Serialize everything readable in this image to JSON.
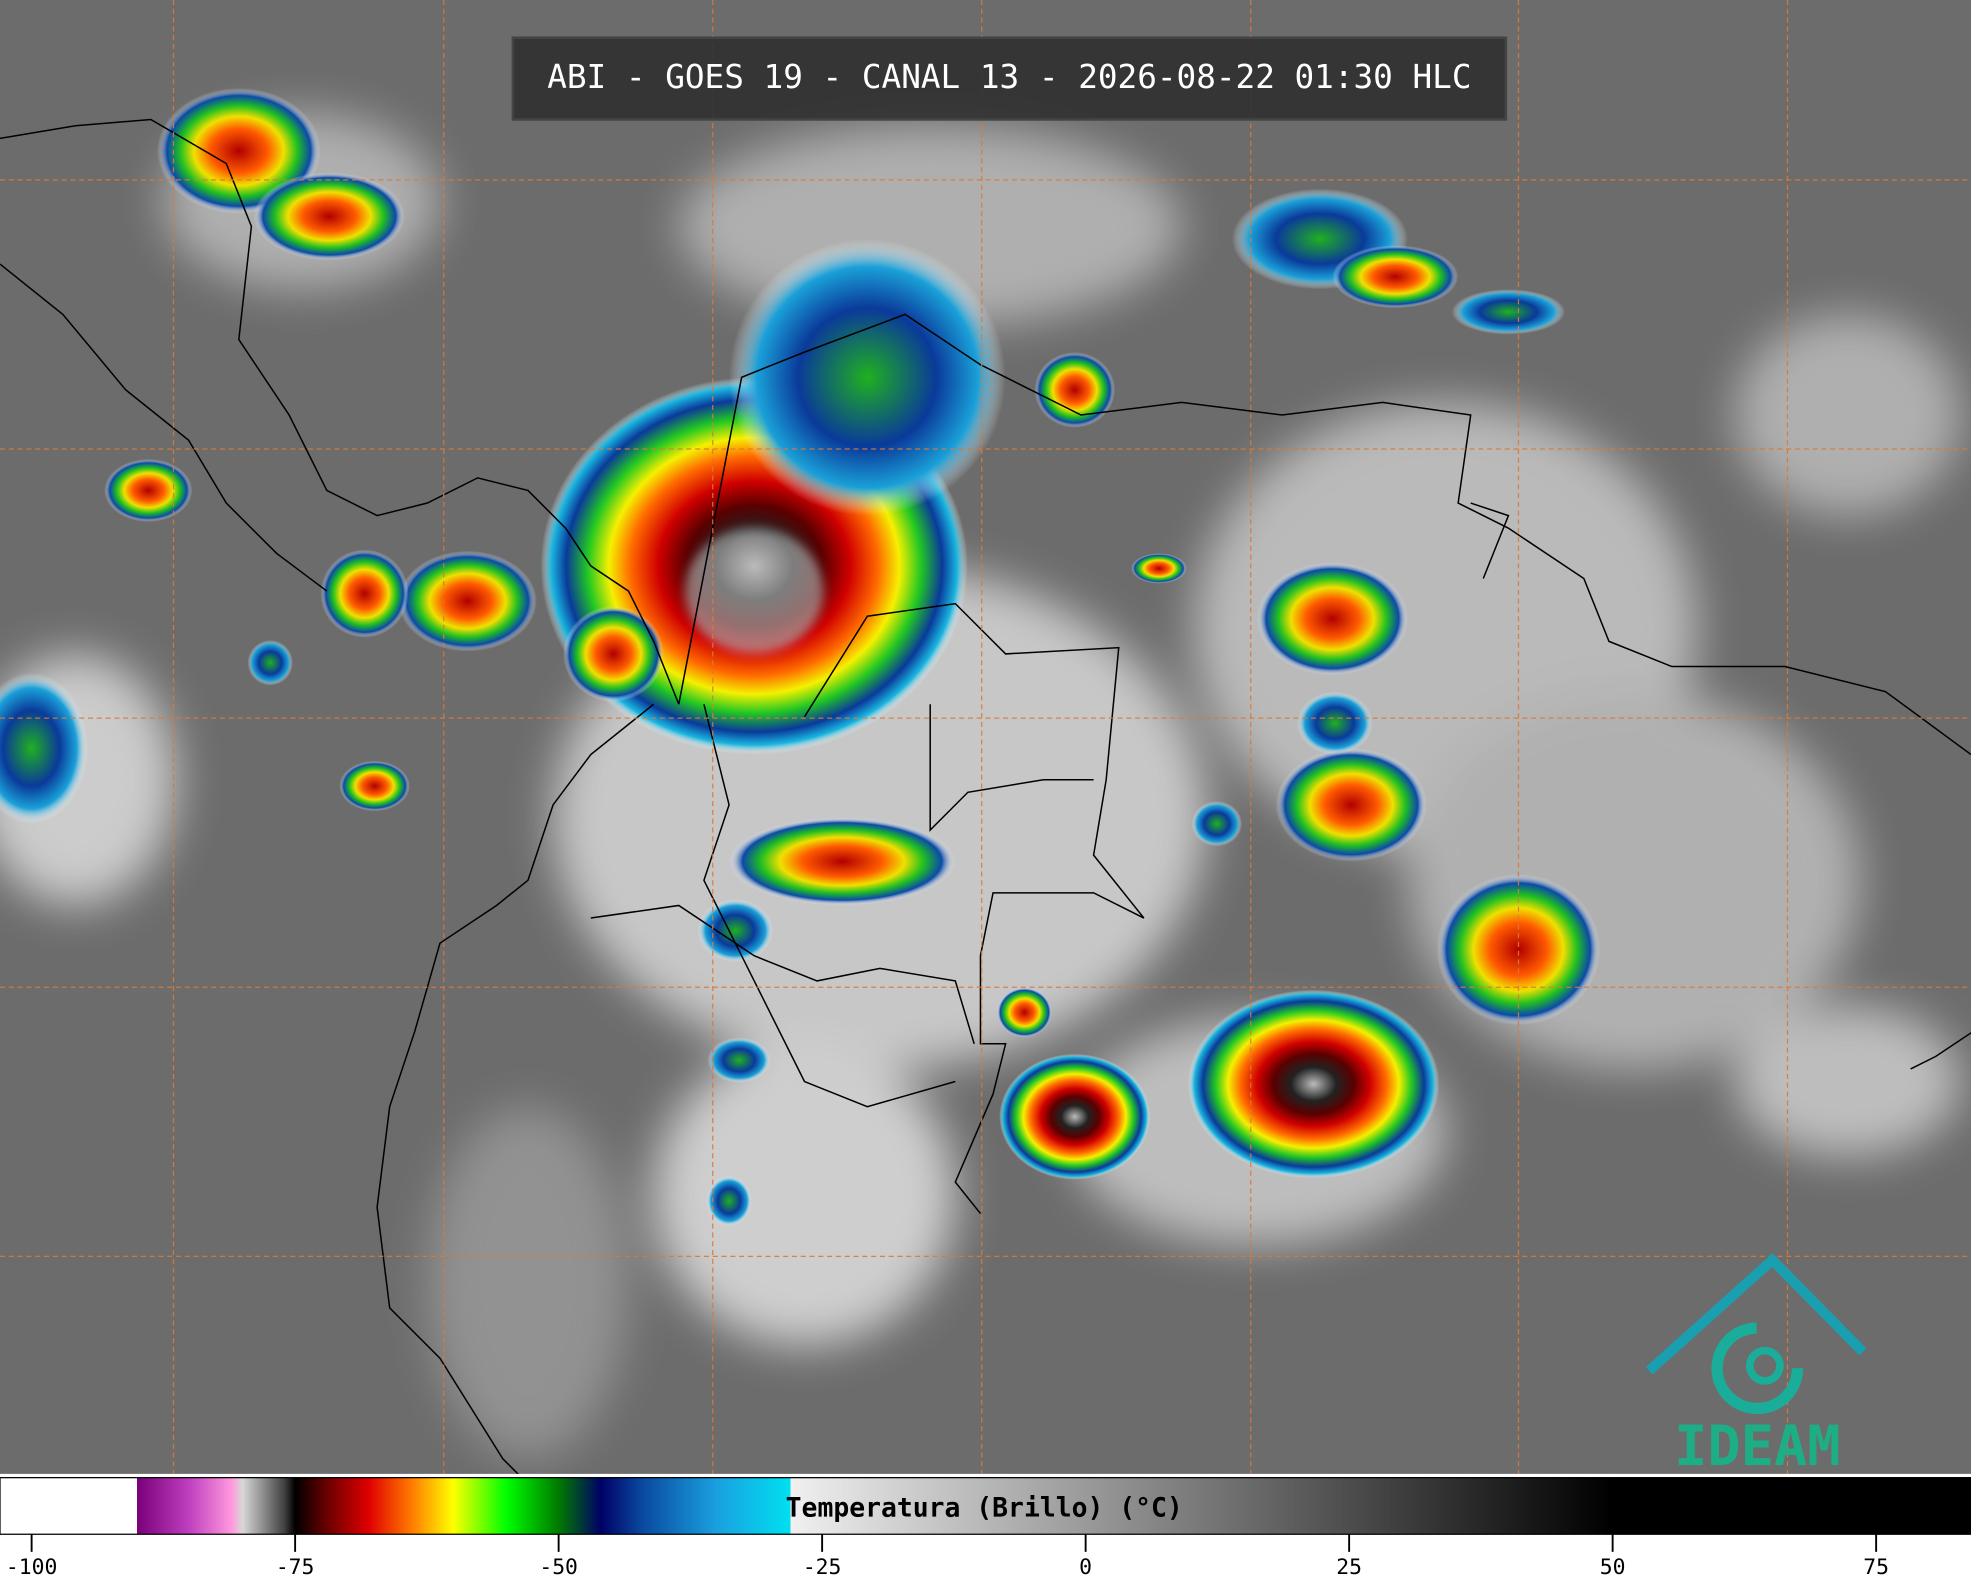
{
  "header": {
    "title": "ABI - GOES 19 - CANAL 13 - 2026-08-22 01:30 HLC"
  },
  "colorbar": {
    "label": "Temperatura (Brillo) (°C)",
    "lim": [
      -103,
      84
    ],
    "ticks": [
      -100,
      -75,
      -50,
      -25,
      0,
      25,
      50,
      75
    ]
  },
  "logo": {
    "text": "IDEAM"
  }
}
